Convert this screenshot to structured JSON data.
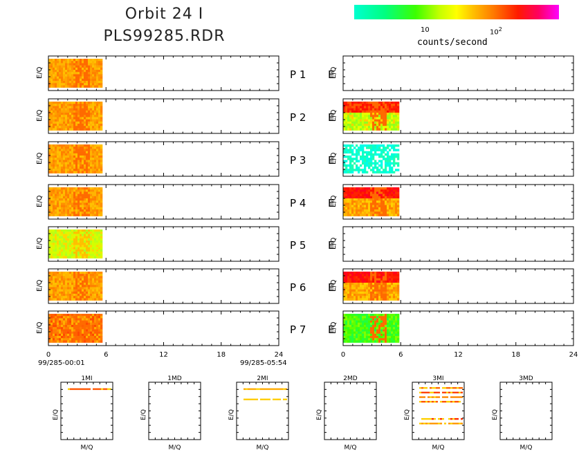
{
  "header": {
    "title_line1": "Orbit 24 I",
    "title_line2": "PLS99285.RDR"
  },
  "colorbar": {
    "tick_10": "10",
    "tick_100_base": "10",
    "tick_100_exp": "2",
    "unit": "counts/second",
    "colors": [
      "#00ffd0",
      "#00ff80",
      "#3cff00",
      "#c8ff00",
      "#ffff00",
      "#ffc000",
      "#ff7a00",
      "#ff1a00",
      "#ff0060",
      "#ff00ff"
    ]
  },
  "chart_data": [
    {
      "type": "heatmap",
      "name": "time-series spectrograms",
      "panels": [
        "P 1",
        "P 2",
        "P 3",
        "P 4",
        "P 5",
        "P 6",
        "P 7"
      ],
      "panel_center_label": "E",
      "ylabel": "E/Q",
      "x_ticks": [
        "0",
        "6",
        "12",
        "18",
        "24"
      ],
      "xlim": [
        0,
        24
      ],
      "left_column": {
        "data_span": [
          0,
          5.8
        ],
        "start_label": "99/285-00:01",
        "end_label": "99/285-05:54",
        "panel_dominant_level": [
          "orange",
          "orange",
          "orange",
          "orange",
          "yellow-green",
          "orange",
          "red-orange"
        ]
      },
      "right_column": {
        "data_span": [
          0,
          6.0
        ],
        "panel_dominant_level": [
          "none",
          "red-orange over green",
          "cyan (sparse)",
          "red over orange",
          "none",
          "red over yellow-orange",
          "green"
        ]
      }
    },
    {
      "type": "heatmap",
      "name": "mass spectra",
      "xlabel": "M/Q",
      "ylabel": "E/Q",
      "panels": [
        {
          "title": "1MI",
          "bands": [
            {
              "level": 0.88,
              "color": "#ff5500"
            }
          ]
        },
        {
          "title": "1MD",
          "bands": []
        },
        {
          "title": "2MI",
          "bands": [
            {
              "level": 0.88,
              "color": "#ffaa00"
            },
            {
              "level": 0.7,
              "color": "#ffcc00"
            }
          ]
        },
        {
          "title": "2MD",
          "bands": []
        },
        {
          "title": "3MI",
          "bands": [
            {
              "level": 0.9,
              "color": "#ff6600"
            },
            {
              "level": 0.82,
              "color": "#ff4400"
            },
            {
              "level": 0.74,
              "color": "#ff8800"
            },
            {
              "level": 0.66,
              "color": "#ff5500"
            },
            {
              "level": 0.36,
              "color": "#ff2a00"
            },
            {
              "level": 0.28,
              "color": "#ff9900"
            }
          ]
        },
        {
          "title": "3MD",
          "bands": []
        }
      ]
    }
  ]
}
